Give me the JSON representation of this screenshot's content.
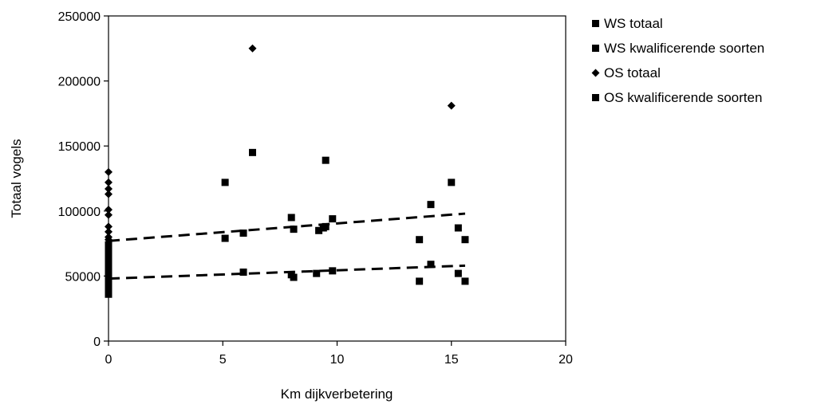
{
  "chart_data": {
    "type": "scatter",
    "xlabel": "Km dijkverbetering",
    "ylabel": "Totaal vogels",
    "xlim": [
      0,
      20
    ],
    "ylim": [
      0,
      250000
    ],
    "x_ticks": [
      "0",
      "5",
      "10",
      "15",
      "20"
    ],
    "y_ticks": [
      "0",
      "50000",
      "100000",
      "150000",
      "200000",
      "250000"
    ],
    "grid": false,
    "legend_position": "right",
    "colors": {
      "markers": "#000000",
      "axes": "#000000",
      "background": "#ffffff"
    },
    "series": [
      {
        "name": "WS totaal",
        "marker": "square",
        "points": [
          [
            5.1,
            79000
          ],
          [
            5.9,
            83000
          ],
          [
            8.0,
            95000
          ],
          [
            8.1,
            86000
          ],
          [
            9.2,
            85000
          ],
          [
            9.4,
            87000
          ],
          [
            9.5,
            88000
          ],
          [
            9.8,
            94000
          ],
          [
            13.6,
            78000
          ],
          [
            14.1,
            105000
          ],
          [
            15.3,
            87000
          ],
          [
            15.6,
            78000
          ]
        ]
      },
      {
        "name": "WS kwalificerende soorten",
        "marker": "square",
        "points": [
          [
            5.9,
            53000
          ],
          [
            8.0,
            51000
          ],
          [
            8.1,
            49000
          ],
          [
            9.1,
            52000
          ],
          [
            9.8,
            54000
          ],
          [
            13.6,
            46000
          ],
          [
            14.1,
            59000
          ],
          [
            15.3,
            52000
          ],
          [
            15.6,
            46000
          ],
          [
            0,
            36000
          ],
          [
            0,
            39000
          ],
          [
            0,
            42000
          ],
          [
            0,
            45000
          ],
          [
            0,
            48000
          ],
          [
            0,
            51000
          ],
          [
            0,
            55000
          ],
          [
            0,
            58000
          ],
          [
            0,
            62000
          ],
          [
            0,
            66000
          ],
          [
            0,
            70000
          ],
          [
            0,
            74000
          ]
        ]
      },
      {
        "name": "OS totaal",
        "marker": "diamond",
        "points": [
          [
            6.3,
            225000
          ],
          [
            15.0,
            181000
          ],
          [
            0,
            130000
          ],
          [
            0,
            122000
          ],
          [
            0,
            117000
          ],
          [
            0,
            113000
          ],
          [
            0,
            101000
          ],
          [
            0,
            97000
          ],
          [
            0,
            88000
          ],
          [
            0,
            84000
          ],
          [
            0,
            80000
          ],
          [
            0,
            78000
          ]
        ]
      },
      {
        "name": "OS kwalificerende soorten",
        "marker": "square",
        "points": [
          [
            5.1,
            122000
          ],
          [
            6.3,
            145000
          ],
          [
            9.5,
            139000
          ],
          [
            15.0,
            122000
          ]
        ]
      }
    ],
    "trendlines": [
      {
        "style": "dashed",
        "x": [
          0,
          15.6
        ],
        "y": [
          77000,
          98000
        ]
      },
      {
        "style": "dashed",
        "x": [
          0,
          15.6
        ],
        "y": [
          48000,
          58000
        ]
      }
    ]
  }
}
